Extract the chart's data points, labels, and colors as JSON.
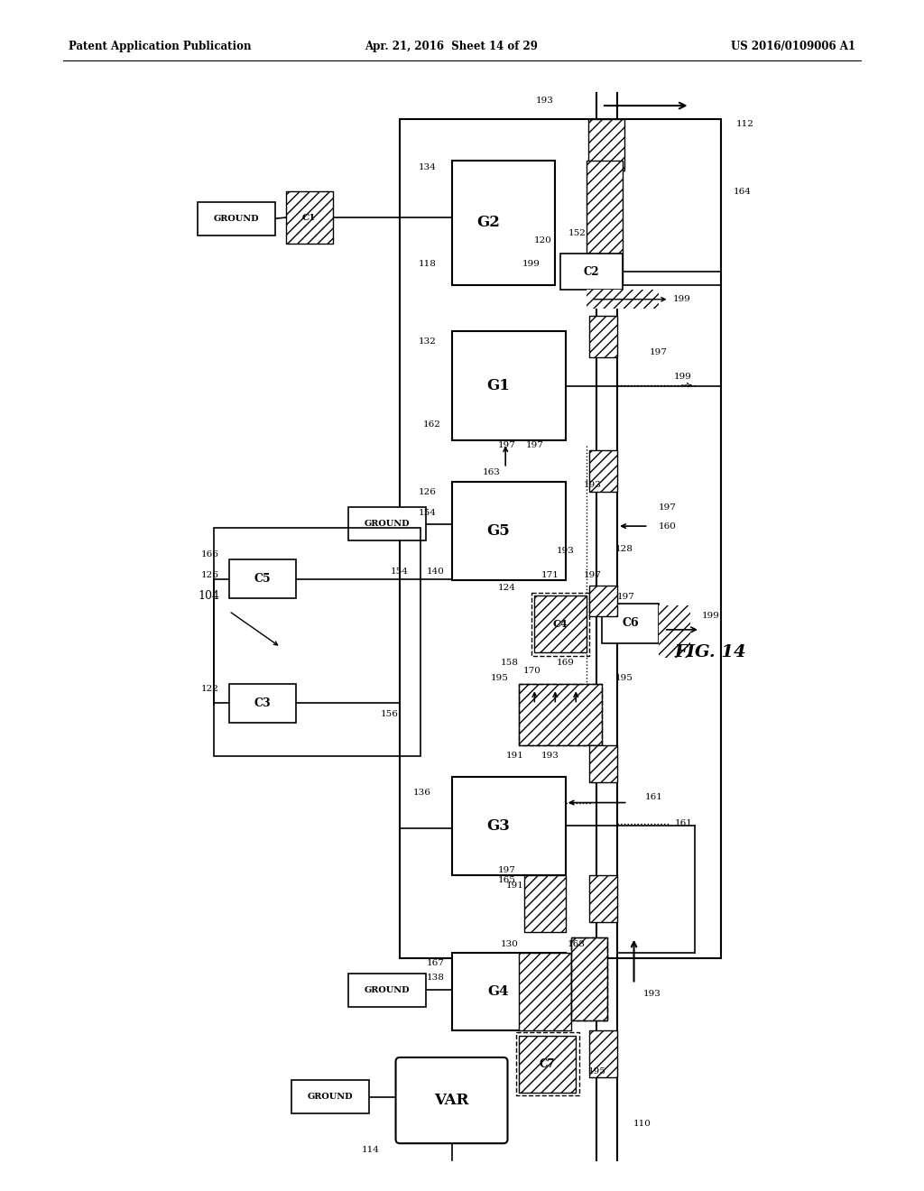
{
  "title_left": "Patent Application Publication",
  "title_center": "Apr. 21, 2016  Sheet 14 of 29",
  "title_right": "US 2016/0109006 A1",
  "fig_label": "FIG. 14",
  "background": "#ffffff",
  "lc": "#000000"
}
